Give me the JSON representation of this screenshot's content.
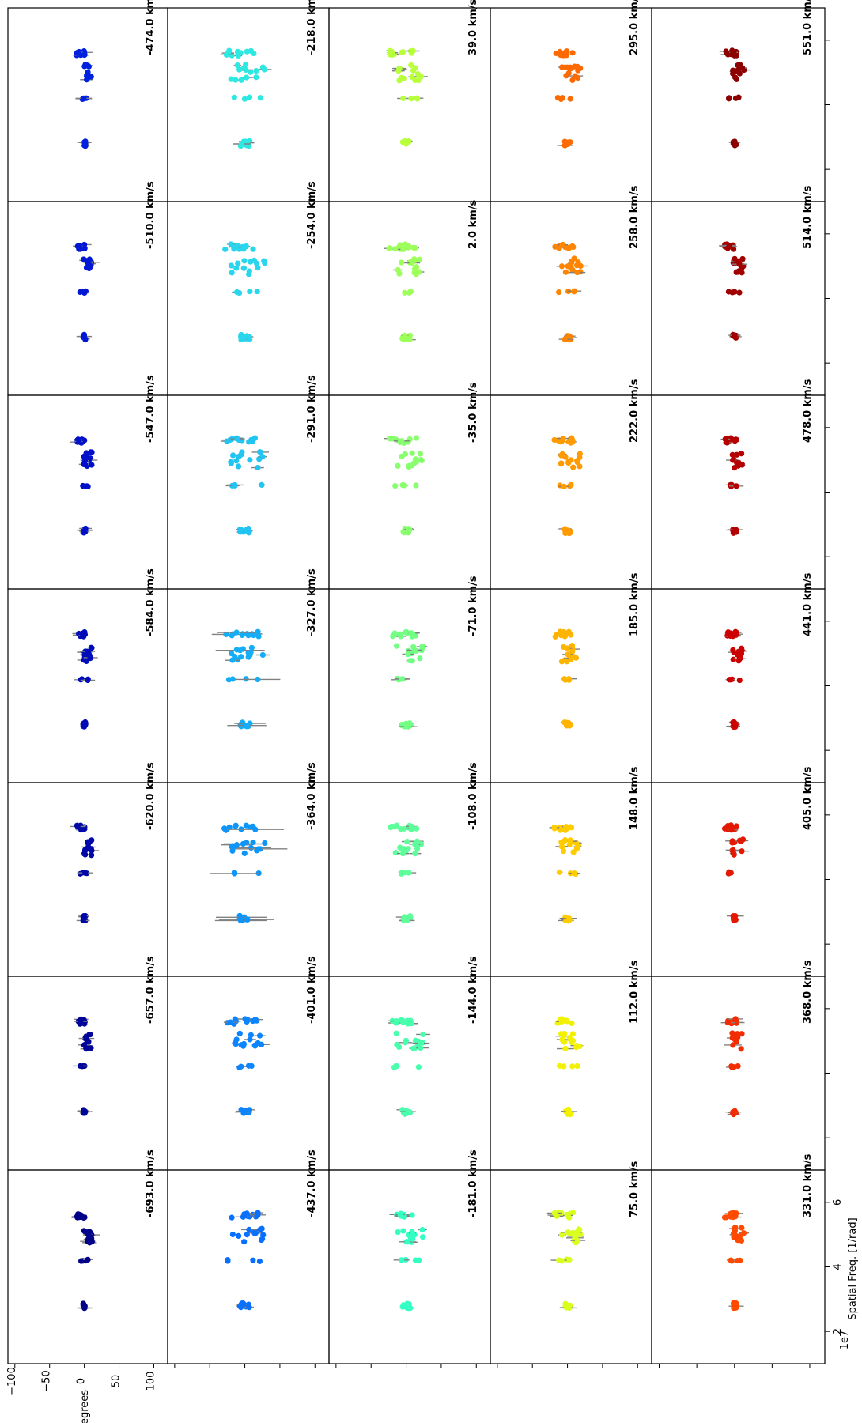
{
  "chart_data": {
    "type": "scatter",
    "orientation": "rotated-90-ccw",
    "grid": false,
    "rows": 7,
    "cols": 5,
    "xlabel": "Spatial Freq. [1/rad]",
    "ylabel": "Degrees",
    "x_offset_label": "1e7",
    "x_ticks": [
      "2",
      "4",
      "6"
    ],
    "y_ticks": [
      "100",
      "50",
      "0",
      "−50",
      "−100"
    ],
    "xlim": [
      10000000.0,
      70000000.0
    ],
    "ylim": [
      -110,
      120
    ],
    "velocity_unit": "km/s",
    "panels": [
      [
        {
          "label": "-474.0 km/s",
          "color": "#0022e0"
        },
        {
          "label": "-218.0 km/s",
          "color": "#2ee8e2"
        },
        {
          "label": "39.0 km/s",
          "color": "#b8ff3c"
        },
        {
          "label": "295.0 km/s",
          "color": "#ff6a00"
        },
        {
          "label": "551.0 km/s",
          "color": "#8c0000"
        }
      ],
      [
        {
          "label": "-510.0 km/s",
          "color": "#0018d4"
        },
        {
          "label": "-254.0 km/s",
          "color": "#2ad6ee"
        },
        {
          "label": "2.0 km/s",
          "color": "#9cff5a"
        },
        {
          "label": "258.0 km/s",
          "color": "#ff8400"
        },
        {
          "label": "514.0 km/s",
          "color": "#a00000"
        }
      ],
      [
        {
          "label": "-547.0 km/s",
          "color": "#0010c8"
        },
        {
          "label": "-291.0 km/s",
          "color": "#22c4f2"
        },
        {
          "label": "-35.0 km/s",
          "color": "#88ff6e"
        },
        {
          "label": "222.0 km/s",
          "color": "#ff9a00"
        },
        {
          "label": "478.0 km/s",
          "color": "#b40000"
        }
      ],
      [
        {
          "label": "-584.0 km/s",
          "color": "#000cb8"
        },
        {
          "label": "-327.0 km/s",
          "color": "#14aef8"
        },
        {
          "label": "-71.0 km/s",
          "color": "#72ff84"
        },
        {
          "label": "185.0 km/s",
          "color": "#ffb400"
        },
        {
          "label": "441.0 km/s",
          "color": "#cc0000"
        }
      ],
      [
        {
          "label": "-620.0 km/s",
          "color": "#0008a8"
        },
        {
          "label": "-364.0 km/s",
          "color": "#0c96fc"
        },
        {
          "label": "-108.0 km/s",
          "color": "#5cff9a"
        },
        {
          "label": "148.0 km/s",
          "color": "#ffcc00"
        },
        {
          "label": "405.0 km/s",
          "color": "#e41800"
        }
      ],
      [
        {
          "label": "-657.0 km/s",
          "color": "#000498"
        },
        {
          "label": "-401.0 km/s",
          "color": "#0a84ff"
        },
        {
          "label": "-144.0 km/s",
          "color": "#48ffae"
        },
        {
          "label": "112.0 km/s",
          "color": "#f2f200"
        },
        {
          "label": "368.0 km/s",
          "color": "#f22c00"
        }
      ],
      [
        {
          "label": "-693.0 km/s",
          "color": "#000088"
        },
        {
          "label": "-437.0 km/s",
          "color": "#0870ff"
        },
        {
          "label": "-181.0 km/s",
          "color": "#34ffc2"
        },
        {
          "label": "75.0 km/s",
          "color": "#d8ff1e"
        },
        {
          "label": "331.0 km/s",
          "color": "#ff4a00"
        }
      ]
    ]
  }
}
